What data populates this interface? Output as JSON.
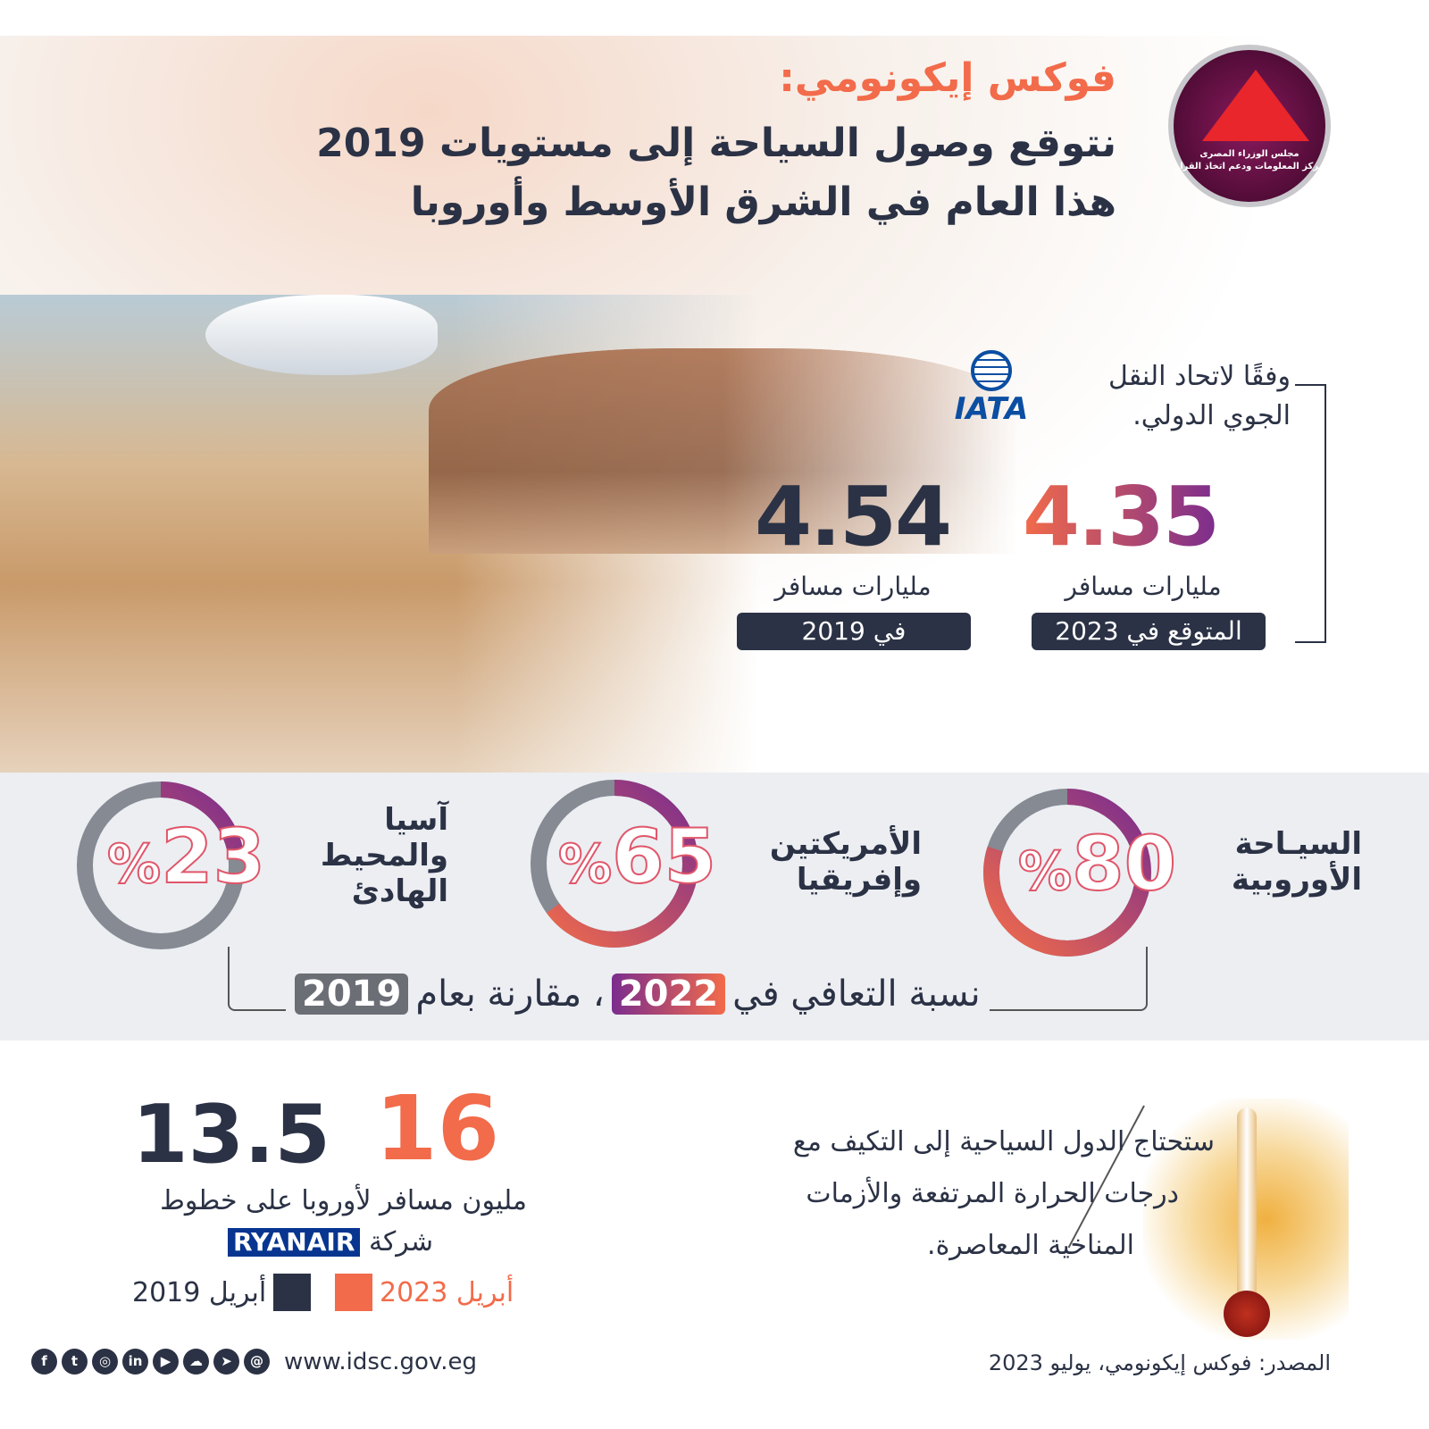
{
  "header": {
    "title_line1": "فوكس إيكونومي:",
    "title_line2": "نتوقع وصول السياحة إلى مستويات 2019",
    "title_line3": "هذا العام في الشرق الأوسط وأوروبا",
    "logo_text_line1": "مجلس الوزراء المصرى",
    "logo_text_line2": "مركز المعلومات ودعم اتخاذ القرار"
  },
  "iata": {
    "logo_text": "IATA",
    "intro_line1": "وفقًا لاتحاد النقل",
    "intro_line2": "الجوي الدولي.",
    "stats": [
      {
        "value": "4.35",
        "unit": "مليارات مسافر",
        "label": "المتوقع في 2023"
      },
      {
        "value": "4.54",
        "unit": "مليارات مسافر",
        "label": "في 2019"
      }
    ]
  },
  "recovery": {
    "percent_symbol": "%",
    "items": [
      {
        "label_line1": "السيـاحة",
        "label_line2": "الأوروبية",
        "label_line3": "",
        "value": 80
      },
      {
        "label_line1": "الأمريكتين",
        "label_line2": "وإفريقيا",
        "label_line3": "",
        "value": 65
      },
      {
        "label_line1": "آسيا",
        "label_line2": "والمحيط",
        "label_line3": "الهادئ",
        "value": 23
      }
    ],
    "caption_prefix": "نسبة التعافي في",
    "caption_year1": "2022",
    "caption_mid": "، مقارنة بعام",
    "caption_year2": "2019"
  },
  "ryanair": {
    "value_2023": "16",
    "value_2019": "13.5",
    "text_line1": "مليون مسافر لأوروبا على خطوط",
    "text_line2": "شركة",
    "brand": "RYANAIR",
    "legend": [
      {
        "label": "أبريل 2023",
        "color": "#f26b4a"
      },
      {
        "label": "أبريل 2019",
        "color": "#2b3245"
      }
    ]
  },
  "climate": {
    "line1": "ستحتاج الدول السياحية إلى التكيف مع",
    "line2": "درجات الحرارة المرتفعة والأزمات",
    "line3": "المناخية المعاصرة."
  },
  "footer": {
    "social_icons": [
      "facebook-icon",
      "twitter-icon",
      "instagram-icon",
      "linkedin-icon",
      "youtube-icon",
      "soundcloud-icon",
      "telegram-icon",
      "threads-icon"
    ],
    "url": "www.idsc.gov.eg",
    "source": "المصدر: فوكس إيكونومي، يوليو 2023"
  },
  "colors": {
    "accent": "#f26b4a",
    "purple": "#7b2d8e",
    "navy": "#2b3245",
    "ring_gray": "#858a93"
  }
}
